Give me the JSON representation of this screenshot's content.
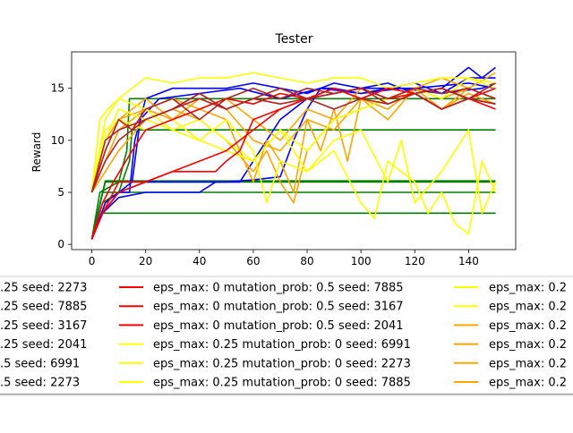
{
  "chart_data": {
    "type": "line",
    "title": "Tester",
    "xlabel": "",
    "ylabel": "Reward",
    "xlim": [
      -7.5,
      157.5
    ],
    "ylim": [
      -0.5,
      18.5
    ],
    "xticks": [
      0,
      20,
      40,
      60,
      80,
      100,
      120,
      140
    ],
    "yticks": [
      0,
      5,
      10,
      15
    ],
    "grid": false,
    "legend_placement": "below plot, 3 columns, clipped",
    "colors": {
      "blue": "#0000ff",
      "green": "#008000",
      "red": "#ff0000",
      "firebrick": "#b22222",
      "yellow": "#ffff00",
      "orange": "#ffa500"
    },
    "legend": [
      [
        {
          "text": ".25 seed: 2273",
          "color": "#0000ff"
        },
        {
          "text": ".25 seed: 7885",
          "color": "#0000ff"
        },
        {
          "text": ".25 seed: 3167",
          "color": "#0000ff"
        },
        {
          "text": ".25 seed: 2041",
          "color": "#0000ff"
        },
        {
          "text": ".5 seed: 6991",
          "color": "#008000"
        },
        {
          "text": ".5 seed: 2273",
          "color": "#008000"
        }
      ],
      [
        {
          "text": "eps_max: 0 mutation_prob: 0.5 seed: 7885",
          "color": "#ff0000"
        },
        {
          "text": "eps_max: 0 mutation_prob: 0.5 seed: 3167",
          "color": "#ff0000"
        },
        {
          "text": "eps_max: 0 mutation_prob: 0.5 seed: 2041",
          "color": "#ff0000"
        },
        {
          "text": "eps_max: 0.25 mutation_prob: 0 seed: 6991",
          "color": "#ffff00"
        },
        {
          "text": "eps_max: 0.25 mutation_prob: 0 seed: 2273",
          "color": "#ffff00"
        },
        {
          "text": "eps_max: 0.25 mutation_prob: 0 seed: 7885",
          "color": "#ffff00"
        }
      ],
      [
        {
          "text": "eps_max: 0.2",
          "color": "#ffff00"
        },
        {
          "text": "eps_max: 0.2",
          "color": "#ffff00"
        },
        {
          "text": "eps_max: 0.2",
          "color": "#ffa500"
        },
        {
          "text": "eps_max: 0.2",
          "color": "#ffa500"
        },
        {
          "text": "eps_max: 0.2",
          "color": "#ffa500"
        },
        {
          "text": "eps_max: 0.2",
          "color": "#ffa500"
        }
      ]
    ],
    "series": [
      {
        "color": "#008000",
        "x": [
          0,
          4,
          150
        ],
        "values": [
          0.5,
          3,
          3
        ]
      },
      {
        "color": "#008000",
        "x": [
          0,
          4,
          150
        ],
        "values": [
          0.5,
          5,
          5
        ]
      },
      {
        "color": "#008000",
        "x": [
          0,
          5,
          150
        ],
        "values": [
          0.5,
          6,
          6
        ]
      },
      {
        "color": "#008000",
        "x": [
          0,
          5,
          150
        ],
        "values": [
          0.5,
          6.1,
          6.1
        ]
      },
      {
        "color": "#008000",
        "x": [
          0,
          4,
          10,
          14,
          15,
          150
        ],
        "values": [
          0.5,
          4,
          5,
          8,
          11,
          11
        ]
      },
      {
        "color": "#008000",
        "x": [
          0,
          3,
          10,
          13,
          14,
          150
        ],
        "values": [
          0.5,
          5,
          6,
          9,
          14,
          14
        ]
      },
      {
        "color": "#0000ff",
        "x": [
          0,
          4,
          10,
          14,
          16,
          20,
          30,
          50,
          60,
          70,
          80,
          90,
          100,
          110,
          120,
          130,
          140,
          145,
          150
        ],
        "values": [
          0.5,
          3,
          5,
          5,
          10,
          14,
          15,
          15,
          15.5,
          15,
          14.5,
          15.5,
          15,
          15.5,
          14.5,
          15,
          17,
          16,
          17
        ]
      },
      {
        "color": "#0000ff",
        "x": [
          0,
          4,
          10,
          20,
          30,
          40,
          46,
          50,
          60,
          70,
          75,
          80,
          85,
          90,
          100,
          110,
          120,
          130,
          140,
          150
        ],
        "values": [
          0.5,
          3,
          4.5,
          5,
          5,
          5,
          6,
          6,
          6.2,
          6.5,
          10,
          13,
          15,
          15,
          14.5,
          15,
          15.5,
          14.5,
          16,
          16
        ]
      },
      {
        "color": "#0000ff",
        "x": [
          0,
          5,
          15,
          18,
          25,
          40,
          55,
          70,
          85,
          100,
          115,
          130,
          145,
          150
        ],
        "values": [
          0.5,
          4,
          6,
          12,
          14,
          14.5,
          15,
          14,
          15,
          14.5,
          15,
          14.5,
          15,
          15.5
        ]
      },
      {
        "color": "#0000ff",
        "x": [
          0,
          4,
          10,
          20,
          40,
          55,
          60,
          70,
          80,
          90,
          100,
          120,
          140,
          150
        ],
        "values": [
          0.5,
          3,
          5,
          6,
          6,
          6,
          8,
          12,
          14,
          14.5,
          15,
          15,
          15.5,
          15
        ]
      },
      {
        "color": "#ffa500",
        "x": [
          0,
          5,
          10,
          20,
          30,
          40,
          50,
          55,
          60,
          65,
          70,
          75,
          80,
          85,
          90,
          95,
          100,
          110,
          120,
          130,
          140,
          150
        ],
        "values": [
          5,
          8,
          11,
          13,
          14,
          13,
          12,
          9,
          6,
          10,
          8,
          5,
          12,
          9,
          13,
          8,
          14,
          12,
          15,
          13,
          15,
          14
        ]
      },
      {
        "color": "#ffa500",
        "x": [
          0,
          5,
          10,
          20,
          30,
          40,
          50,
          60,
          70,
          80,
          90,
          100,
          110,
          120,
          130,
          140,
          150
        ],
        "values": [
          5,
          9,
          12,
          13,
          12,
          14,
          13,
          10,
          9,
          12,
          11,
          14,
          13,
          15,
          14,
          15,
          14
        ]
      },
      {
        "color": "#ffa500",
        "x": [
          0,
          5,
          10,
          20,
          30,
          40,
          50,
          60,
          65,
          70,
          75,
          80,
          90,
          100,
          110,
          120,
          130,
          140,
          150
        ],
        "values": [
          5,
          7,
          9,
          12,
          13,
          12,
          10,
          7,
          9,
          6,
          4,
          9,
          12,
          13,
          14,
          14.5,
          13,
          14.5,
          13.5
        ]
      },
      {
        "color": "#ffa500",
        "x": [
          0,
          5,
          10,
          20,
          30,
          40,
          50,
          60,
          70,
          80,
          90,
          100,
          110,
          120,
          130,
          140,
          150
        ],
        "values": [
          5,
          10,
          12,
          14,
          12,
          13,
          14,
          12,
          10,
          13,
          12,
          15,
          14,
          15,
          16,
          15,
          16.5
        ]
      },
      {
        "color": "#ffff00",
        "x": [
          0,
          3,
          6,
          10,
          15,
          20,
          30,
          40,
          50,
          60,
          70,
          80,
          90,
          100,
          110,
          120,
          130,
          140,
          150
        ],
        "values": [
          5,
          12,
          13,
          14,
          15,
          16,
          15.5,
          16,
          16,
          16.5,
          16,
          15.5,
          16,
          16,
          15,
          15.5,
          16,
          16,
          15.5
        ]
      },
      {
        "color": "#ffff00",
        "x": [
          0,
          5,
          10,
          20,
          30,
          40,
          50,
          60,
          70,
          80,
          90,
          100,
          105,
          110,
          120,
          125,
          130,
          135,
          140,
          145,
          150
        ],
        "values": [
          5,
          10,
          13,
          12,
          11,
          10,
          9,
          8,
          11,
          7,
          9,
          4,
          2.5,
          8,
          6,
          3,
          5,
          2,
          1,
          8,
          5
        ]
      },
      {
        "color": "#ffff00",
        "x": [
          0,
          5,
          10,
          20,
          30,
          40,
          50,
          60,
          65,
          70,
          80,
          90,
          100,
          110,
          115,
          120,
          130,
          140,
          145,
          150
        ],
        "values": [
          5,
          11,
          12,
          11,
          12,
          10,
          12,
          9,
          4,
          8,
          7,
          10,
          11,
          6,
          10,
          4,
          7,
          11,
          3,
          6
        ]
      },
      {
        "color": "#ffff00",
        "x": [
          0,
          5,
          10,
          20,
          30,
          40,
          50,
          60,
          70,
          80,
          90,
          100,
          110,
          120,
          130,
          140,
          150
        ],
        "values": [
          5,
          12,
          14,
          13,
          11,
          12,
          10,
          8,
          11,
          9,
          12,
          13,
          14,
          15,
          14,
          16,
          15
        ]
      },
      {
        "color": "#ff0000",
        "x": [
          0,
          4,
          10,
          20,
          30,
          40,
          46,
          50,
          55,
          60,
          70,
          80,
          90,
          100,
          110,
          120,
          130,
          140,
          150
        ],
        "values": [
          0.5,
          3,
          5,
          6,
          7,
          7,
          7,
          8,
          9,
          12,
          13,
          14,
          15,
          14,
          15,
          14.5,
          15,
          14,
          13
        ]
      },
      {
        "color": "#ff0000",
        "x": [
          0,
          4,
          10,
          20,
          30,
          40,
          50,
          60,
          70,
          80,
          90,
          100,
          110,
          120,
          130,
          140,
          150
        ],
        "values": [
          0.5,
          3,
          6,
          6,
          7,
          8,
          9,
          11,
          13,
          14,
          14.5,
          15,
          14,
          14.5,
          13,
          14,
          13.5
        ]
      },
      {
        "color": "#ff0000",
        "x": [
          0,
          4,
          8,
          15,
          20,
          30,
          40,
          50,
          60,
          70,
          80,
          90,
          100,
          110,
          120,
          130,
          140,
          150
        ],
        "values": [
          0.5,
          4,
          6,
          9,
          11,
          12,
          13,
          14,
          13.5,
          14.5,
          14,
          15,
          14,
          15,
          14.5,
          15,
          14,
          15
        ]
      },
      {
        "color": "#b22222",
        "x": [
          0,
          5,
          10,
          15,
          20,
          30,
          40,
          50,
          60,
          70,
          80,
          90,
          100,
          110,
          120,
          130,
          140,
          150
        ],
        "values": [
          5,
          8,
          10,
          11,
          12,
          13,
          14,
          13,
          14,
          13.5,
          14,
          13,
          14,
          13.5,
          14.5,
          13,
          14,
          13.5
        ]
      },
      {
        "color": "#b22222",
        "x": [
          0,
          5,
          10,
          15,
          20,
          30,
          40,
          50,
          60,
          70,
          80,
          90,
          100,
          110,
          120,
          130,
          140,
          150
        ],
        "values": [
          5,
          9,
          12,
          11,
          13,
          14,
          12,
          14,
          15,
          14,
          15,
          14.5,
          15,
          14,
          15,
          14.5,
          15,
          14
        ]
      },
      {
        "color": "#b22222",
        "x": [
          0,
          5,
          10,
          20,
          30,
          40,
          50,
          60,
          70,
          80,
          90,
          100,
          110,
          120,
          130,
          140,
          150
        ],
        "values": [
          5,
          10,
          11,
          12,
          13,
          14.5,
          13,
          14,
          15,
          14,
          14.5,
          15,
          13.5,
          14.5,
          15,
          14,
          15.5
        ]
      }
    ]
  }
}
